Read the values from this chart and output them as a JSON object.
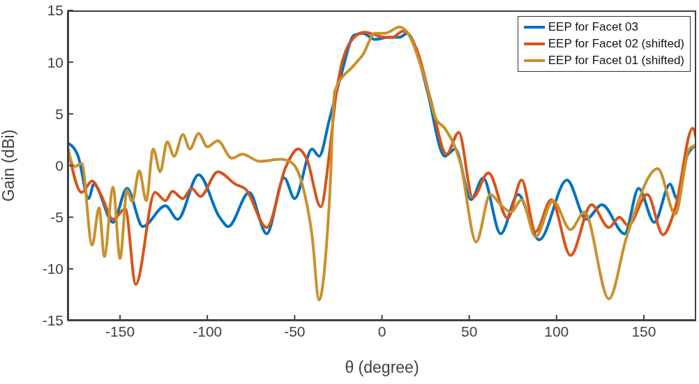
{
  "chart_data": {
    "type": "line",
    "xlabel": "θ (degree)",
    "ylabel": "Gain (dBi)",
    "xlim": [
      -180,
      180
    ],
    "xticks": [
      -150,
      -100,
      -50,
      0,
      50,
      100,
      150
    ],
    "ylim": [
      -15,
      15
    ],
    "yticks": [
      -15,
      -10,
      -5,
      0,
      5,
      10,
      15
    ],
    "grid": false,
    "legend": "top right",
    "marker": "none",
    "line_style": "solid",
    "series": [
      {
        "name": "EEP for Facet 03",
        "color": "#0072bd",
        "x": [
          -180,
          -174,
          -168,
          -165,
          -154,
          -146,
          -137,
          -124,
          -117,
          -105,
          -93,
          -88,
          -76,
          -66,
          -56,
          -50,
          -40,
          -36,
          -30,
          -23,
          -16,
          -11,
          -4,
          4,
          10,
          14.5,
          20,
          26,
          36,
          42,
          51,
          58,
          68,
          78,
          90,
          106,
          117,
          126,
          139,
          147,
          156,
          165,
          169,
          174,
          180
        ],
        "values": [
          2.2,
          0.9,
          -3.2,
          -1.8,
          -5.5,
          -2.2,
          -5.9,
          -3.9,
          -5.2,
          -0.9,
          -5.0,
          -5.9,
          -2.6,
          -6.6,
          -1.2,
          -3.2,
          1.6,
          0.9,
          4.5,
          9.0,
          12.6,
          12.8,
          12.2,
          12.4,
          12.4,
          12.8,
          11.0,
          7.2,
          0.9,
          1.6,
          -3.3,
          -1.2,
          -6.6,
          -2.8,
          -7.2,
          -1.4,
          -5.2,
          -3.8,
          -6.6,
          -2.2,
          -5.5,
          -1.8,
          -3.2,
          0.6,
          2.0
        ]
      },
      {
        "name": "EEP for Facet 02 (shifted)",
        "color": "#d95319",
        "x": [
          -180,
          -172,
          -166,
          -161,
          -154,
          -147,
          -141,
          -130,
          -124,
          -120,
          -114,
          -109,
          -104,
          -94,
          -84,
          -78,
          -66,
          -55,
          -48,
          -43,
          -35,
          -30,
          -26,
          -17,
          -10,
          2,
          6,
          12,
          20,
          28,
          37,
          44,
          52,
          61,
          72,
          80,
          88,
          97,
          108,
          120,
          130,
          136,
          141,
          152,
          161,
          168,
          178,
          180
        ],
        "values": [
          1.8,
          -2.6,
          -1.5,
          -2.8,
          -5.2,
          -4.2,
          -11.5,
          -2.6,
          -3.4,
          -2.5,
          -3.2,
          -2.2,
          -3.0,
          -0.6,
          -1.8,
          -2.3,
          -6.0,
          -0.1,
          1.6,
          0.6,
          -4.0,
          1.3,
          7.2,
          12.2,
          12.9,
          12.4,
          12.4,
          13.0,
          11.2,
          6.3,
          1.1,
          3.2,
          -3.1,
          -0.7,
          -5.1,
          -1.4,
          -6.4,
          -3.3,
          -8.7,
          -3.8,
          -6.0,
          -5.0,
          -5.8,
          -2.8,
          -6.7,
          -4.1,
          3.6,
          2.6
        ]
      },
      {
        "name": "EEP for Facet 01 (shifted)",
        "color": "#c9912c",
        "x": [
          -180,
          -176,
          -172,
          -166,
          -162,
          -159,
          -154,
          -150,
          -146,
          -143,
          -139,
          -135,
          -131,
          -127,
          -123,
          -119,
          -114,
          -110,
          -105,
          -100,
          -94,
          -86,
          -80,
          -70,
          -58,
          -52,
          -46,
          -40,
          -36,
          -30,
          -27,
          -16,
          -11,
          -4,
          2,
          10,
          14,
          24,
          31,
          36,
          45,
          54,
          62,
          68,
          74,
          80,
          88,
          98,
          108,
          116,
          130,
          140,
          158,
          168,
          176,
          180
        ],
        "values": [
          1.6,
          -0.1,
          0.2,
          -7.7,
          -4.1,
          -8.8,
          -2.1,
          -9.0,
          -2.4,
          -3.5,
          -0.5,
          -3.4,
          1.6,
          -0.6,
          2.3,
          0.9,
          3.0,
          1.6,
          3.1,
          1.8,
          2.4,
          0.7,
          1.1,
          0.4,
          0.6,
          0.3,
          -1.6,
          -6.8,
          -13.0,
          -3.2,
          7.2,
          9.7,
          10.7,
          12.8,
          12.8,
          13.4,
          13.0,
          8.7,
          4.5,
          3.6,
          0.2,
          -7.4,
          -2.8,
          -3.8,
          -4.5,
          -3.3,
          -6.9,
          -3.4,
          -6.2,
          -4.5,
          -12.9,
          -7.0,
          -0.3,
          -4.7,
          1.6,
          2.0
        ]
      }
    ]
  }
}
